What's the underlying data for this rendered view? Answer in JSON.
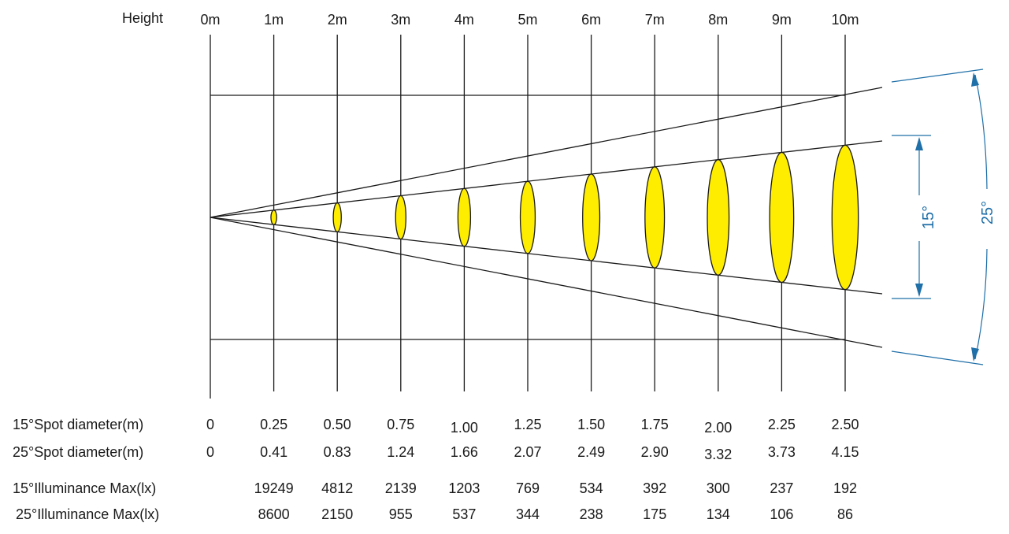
{
  "header": {
    "height_label": "Height",
    "distances": [
      "0m",
      "1m",
      "2m",
      "3m",
      "4m",
      "5m",
      "6m",
      "7m",
      "8m",
      "9m",
      "10m"
    ]
  },
  "beam_angles": {
    "narrow": "15°",
    "wide": "25°",
    "annotation_color": "#1f6fa8",
    "spot_color": "#ffed00"
  },
  "rows": [
    {
      "label": "15°Spot diameter(m)",
      "values": [
        "0",
        "0.25",
        "0.50",
        "0.75",
        "1.00",
        "1.25",
        "1.50",
        "1.75",
        "2.00",
        "2.25",
        "2.50"
      ]
    },
    {
      "label": "25°Spot diameter(m)",
      "values": [
        "0",
        "0.41",
        "0.83",
        "1.24",
        "1.66",
        "2.07",
        "2.49",
        "2.90",
        "3.32",
        "3.73",
        "4.15"
      ]
    },
    {
      "label": "15°Illuminance Max(lx)",
      "values": [
        "",
        "19249",
        "4812",
        "2139",
        "1203",
        "769",
        "534",
        "392",
        "300",
        "237",
        "192"
      ]
    },
    {
      "label": "25°Illuminance Max(lx)",
      "values": [
        "",
        "8600",
        "2150",
        "955",
        "537",
        "344",
        "238",
        "175",
        "134",
        "106",
        "86"
      ]
    }
  ]
}
